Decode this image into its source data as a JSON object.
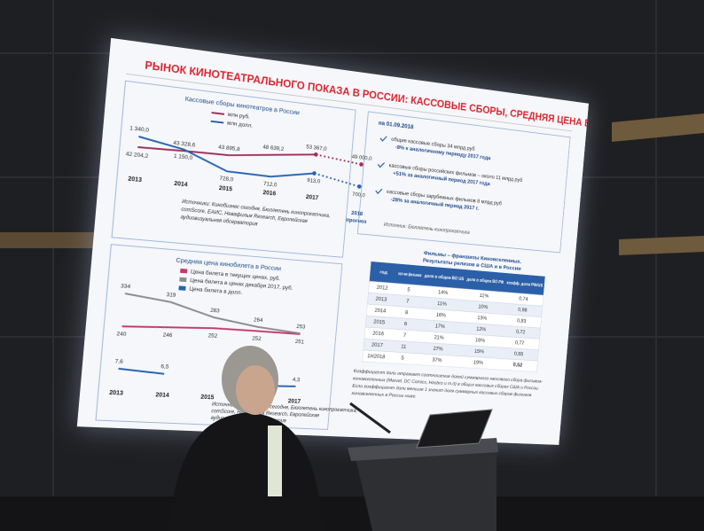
{
  "slide": {
    "title": "РЫНОК КИНОТЕАТРАЛЬНОГО ПОКАЗА В РОССИИ: КАССОВЫЕ СБОРЫ, СРЕДНЯЯ ЦЕНА БИЛЕТА",
    "box_office": {
      "title": "Кассовые сборы кинотеатров в России",
      "categories": [
        "2013",
        "2014",
        "2015",
        "2016",
        "2017"
      ],
      "forecast_category": "2018",
      "forecast_note": "прогноз",
      "series": [
        {
          "name": "млн руб.",
          "color": "#9e2f5a",
          "values": [
            42204.2,
            43328.6,
            43895.8,
            48639.2,
            53367.0
          ],
          "value_labels": [
            "42 204,2",
            "43 328,6",
            "43 895,8",
            "48 639,2",
            "53 367,0"
          ],
          "forecast": 49000.0,
          "forecast_label": "49 000,0"
        },
        {
          "name": "млн долл.",
          "color": "#2563ad",
          "values": [
            1340.0,
            1150.0,
            728.0,
            712.0,
            913.0
          ],
          "value_labels": [
            "1 340,0",
            "1 150,0",
            "728,0",
            "712,0",
            "913,0"
          ],
          "forecast": 700.0,
          "forecast_label": "700,0"
        }
      ],
      "source": [
        "Источники: Кинобизнес сегодня, Бюллетень кинопрокатчика,",
        "comScore, ЕАИС, Невафильм Research, Европейская",
        "аудиовизуальная обсерватория"
      ]
    },
    "ticket_price": {
      "title": "Средняя цена кинобилета в России",
      "categories": [
        "2013",
        "2014",
        "2015",
        "2016",
        "2017"
      ],
      "series": [
        {
          "name": "Цена билета в текущих ценах, руб.",
          "color": "#c23a6a",
          "values": [
            240,
            246,
            252,
            252,
            251
          ]
        },
        {
          "name": "Цена билета в ценах декабря 2017, руб.",
          "color": "#8c8c8c",
          "values": [
            334,
            319,
            283,
            264,
            253
          ]
        },
        {
          "name": "Цена билета в долл.",
          "color": "#2563ad",
          "values": [
            7.6,
            6.5,
            null,
            3.7,
            4.3
          ],
          "value_labels": [
            "7,6",
            "6,5",
            null,
            "3,7",
            "4,3"
          ]
        }
      ],
      "source": [
        "Источники: Кинобизнес сегодня, Бюллетень кинопрокатчика,",
        "comScore, Невафильм Research, Европейская",
        "аудиовизуальная обсерватория"
      ]
    },
    "notes": {
      "date": "на 01.09.2018",
      "items": [
        {
          "text": "общие кассовые сборы 34 млрд руб",
          "change": "-8% к аналогичному периоду 2017 года"
        },
        {
          "text": "кассовые сборы российских фильмов – около 11 млрд руб",
          "change": "+51% за аналогичный период 2017 года"
        },
        {
          "text": "кассовые сборы зарубежных фильмов 8 млрд руб",
          "change": "-28% за аналогичный период 2017 г."
        }
      ],
      "source": "Источник: Бюллетень кинопрокатчика"
    },
    "table": {
      "title": [
        "Фильмы – франшизы Киновселенных.",
        "Результаты релизов в США и в России"
      ],
      "header": [
        "год",
        "кол-во фильмов",
        "доля в общем BO US",
        "доля в общем BO РФ",
        "коэфф. доли РФ/US"
      ],
      "rows": [
        [
          "2012",
          "5",
          "14%",
          "11%",
          "0,74"
        ],
        [
          "2013",
          "7",
          "11%",
          "10%",
          "0,98"
        ],
        [
          "2014",
          "8",
          "16%",
          "13%",
          "0,83"
        ],
        [
          "2015",
          "6",
          "17%",
          "12%",
          "0,72"
        ],
        [
          "2016",
          "7",
          "21%",
          "16%",
          "0,77"
        ],
        [
          "2017",
          "11",
          "27%",
          "15%",
          "0,55"
        ],
        [
          "1H2018",
          "5",
          "37%",
          "19%",
          "0,52"
        ]
      ]
    },
    "footnote": [
      "Коэффициент доли отражает соотношение долей суммарного кассового сбора фильмов-",
      "киновселенных (Marvel, DC Comics, Hasbro и т.д) в общих кассовых сборах США и России.",
      "Если коэффициент доли меньше 1 значит доля суммарных кассовых сборов фильмов",
      "киновселенных в России ниже."
    ]
  }
}
